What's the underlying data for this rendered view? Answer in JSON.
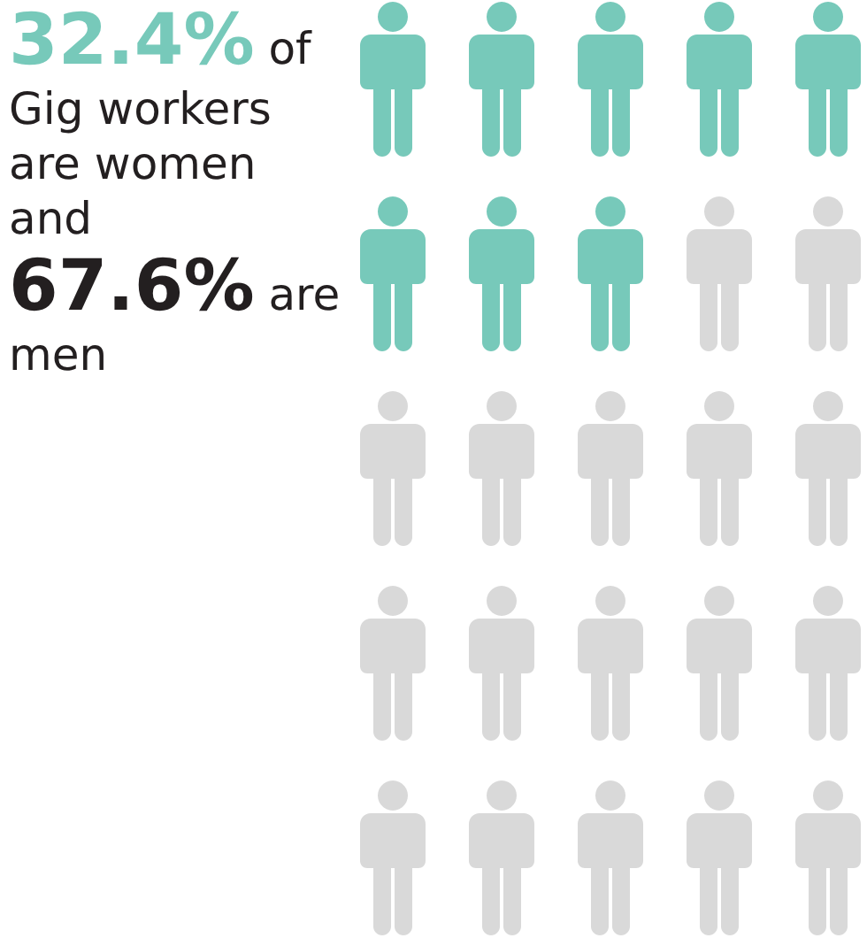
{
  "chart_data": {
    "type": "other",
    "values": [
      32.4,
      67.6
    ],
    "colors": [
      "#77c9ba",
      "#d9d9d9"
    ],
    "value_labels": [
      "32.4%",
      "67.6%"
    ],
    "annotations": [
      "of Gig workers are women and",
      "are men"
    ]
  }
}
